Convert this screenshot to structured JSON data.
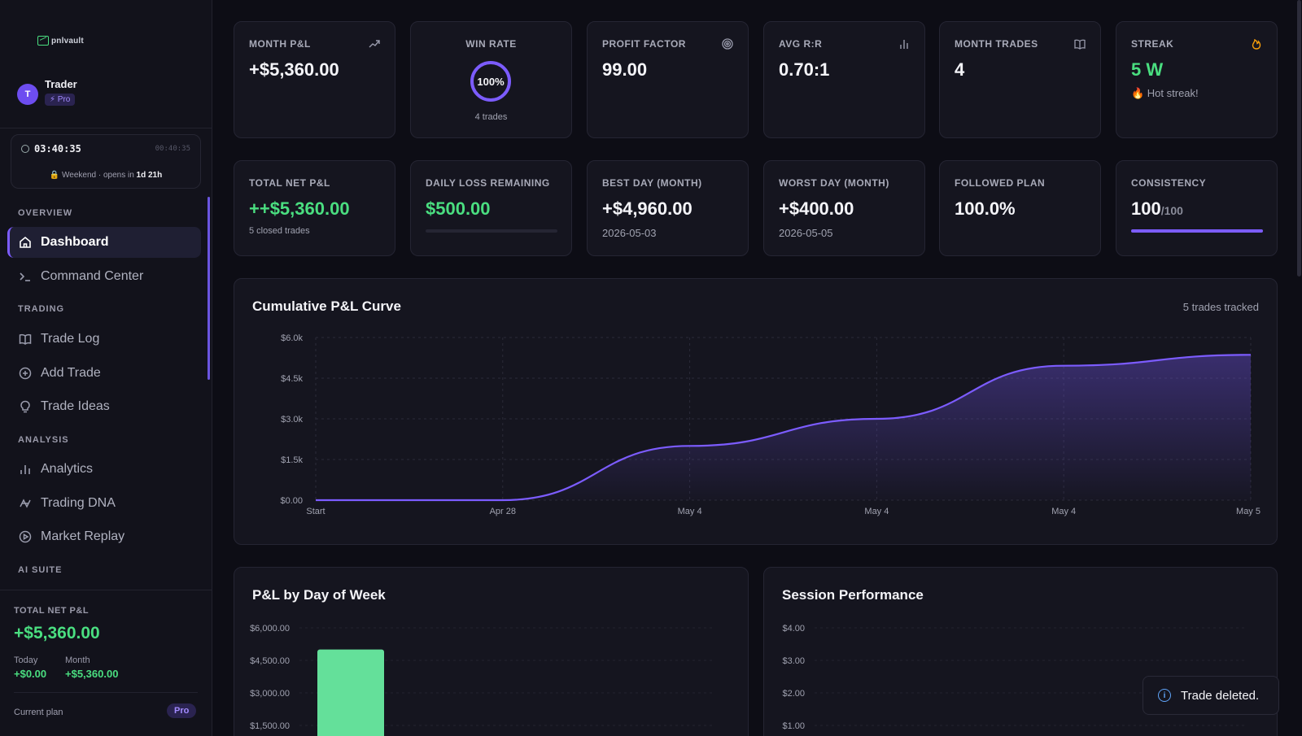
{
  "brand": {
    "logo_text": "pnlvault"
  },
  "user": {
    "initial": "T",
    "name": "Trader",
    "plan_badge": "⚡ Pro"
  },
  "clock": {
    "time": "03:40:35",
    "small_time": "00:40:35",
    "status_prefix": "🔒 Weekend · opens in ",
    "status_bold": "1d 21h"
  },
  "nav": {
    "sections": {
      "overview": "OVERVIEW",
      "trading": "TRADING",
      "analysis": "ANALYSIS",
      "ai": "AI SUITE"
    },
    "items": {
      "dashboard": "Dashboard",
      "command_center": "Command Center",
      "trade_log": "Trade Log",
      "add_trade": "Add Trade",
      "trade_ideas": "Trade Ideas",
      "analytics": "Analytics",
      "trading_dna": "Trading DNA",
      "market_replay": "Market Replay"
    }
  },
  "sidebar_summary": {
    "label": "TOTAL NET P&L",
    "value": "+$5,360.00",
    "today_label": "Today",
    "today_value": "+$0.00",
    "month_label": "Month",
    "month_value": "+$5,360.00",
    "plan_label": "Current plan",
    "plan_value": "Pro"
  },
  "stats_row1": {
    "month_pnl": {
      "label": "MONTH P&L",
      "value": "+$5,360.00"
    },
    "win_rate": {
      "label": "WIN RATE",
      "value": "100%",
      "sub": "4 trades",
      "fraction": 1.0
    },
    "profit_factor": {
      "label": "PROFIT FACTOR",
      "value": "99.00"
    },
    "avg_rr": {
      "label": "AVG R:R",
      "value": "0.70:1"
    },
    "month_trades": {
      "label": "MONTH TRADES",
      "value": "4"
    },
    "streak": {
      "label": "STREAK",
      "value": "5 W",
      "sub": "🔥 Hot streak!"
    }
  },
  "stats_row2": {
    "total_net": {
      "label": "TOTAL NET P&L",
      "value": "++$5,360.00",
      "sub": "5 closed trades"
    },
    "daily_loss": {
      "label": "DAILY LOSS REMAINING",
      "value": "$500.00",
      "fill_fraction": 0
    },
    "best_day": {
      "label": "BEST DAY (MONTH)",
      "value": "+$4,960.00",
      "sub": "2026-05-03"
    },
    "worst_day": {
      "label": "WORST DAY (MONTH)",
      "value": "+$400.00",
      "sub": "2026-05-05"
    },
    "followed_plan": {
      "label": "FOLLOWED PLAN",
      "value": "100.0%"
    },
    "consistency": {
      "label": "CONSISTENCY",
      "value": "100",
      "suffix": "/100",
      "fill_fraction": 1.0
    }
  },
  "cumulative": {
    "title": "Cumulative P&L Curve",
    "meta": "5 trades tracked"
  },
  "dow": {
    "title": "P&L by Day of Week"
  },
  "session": {
    "title": "Session Performance"
  },
  "toast": {
    "text": "Trade deleted."
  },
  "colors": {
    "accent": "#7c5cff",
    "positive": "#4ade80",
    "bar": "#64e09a",
    "info": "#60a5fa"
  },
  "chart_data": [
    {
      "type": "area",
      "title": "Cumulative P&L Curve",
      "x": [
        "Start",
        "Apr 28",
        "May 4",
        "May 4",
        "May 4",
        "May 5"
      ],
      "series": [
        {
          "values": [
            0,
            0,
            2000,
            3000,
            4960,
            5360
          ]
        }
      ],
      "y_ticks": [
        "$0.00",
        "$1.5k",
        "$3.0k",
        "$4.5k",
        "$6.0k"
      ],
      "ylim": [
        0,
        6000
      ],
      "grid": true
    },
    {
      "type": "bar",
      "title": "P&L by Day of Week",
      "values": [
        5000
      ],
      "y_ticks": [
        "$1,500.00",
        "$3,000.00",
        "$4,500.00",
        "$6,000.00"
      ],
      "ylim": [
        0,
        6000
      ],
      "grid": true
    },
    {
      "type": "bar",
      "title": "Session Performance",
      "values": [],
      "y_ticks": [
        "$1.00",
        "$2.00",
        "$3.00",
        "$4.00"
      ],
      "ylim": [
        0,
        4
      ],
      "grid": true
    }
  ]
}
